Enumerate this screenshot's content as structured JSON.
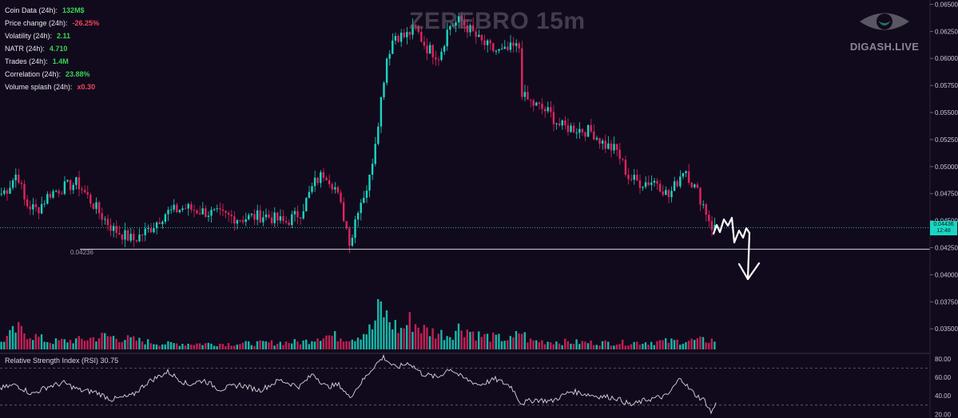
{
  "title": "ZEREBRO 15m",
  "brand": "DIGASH.LIVE",
  "info": [
    {
      "label": "Coin Data (24h):",
      "value": "132M$",
      "color": "#39d353"
    },
    {
      "label": "Price change (24h):",
      "value": "-26.25%",
      "color": "#f0475e"
    },
    {
      "label": "Volatility (24h):",
      "value": "2.11",
      "color": "#39d353"
    },
    {
      "label": "NATR (24h):",
      "value": "4.710",
      "color": "#39d353"
    },
    {
      "label": "Trades (24h):",
      "value": "1.4M",
      "color": "#39d353"
    },
    {
      "label": "Correlation (24h):",
      "value": "23.88%",
      "color": "#39d353"
    },
    {
      "label": "Volume splash (24h):",
      "value": "x0.30",
      "color": "#f0475e"
    }
  ],
  "price_tag": {
    "price": "0.04436",
    "countdown": "12:48"
  },
  "low_label": "0.04236",
  "rsi_label": "Relative Strength Index (RSI) 30.75",
  "colors": {
    "up": "#1ad6c2",
    "down": "#e0245e",
    "background": "#110a1c",
    "rsi_line": "#d9d7df"
  },
  "chart_data": {
    "type": "candlestick",
    "title": "ZEREBRO 15m",
    "price_axis_ticks": [
      0.065,
      0.0625,
      0.06,
      0.0575,
      0.055,
      0.0525,
      0.05,
      0.0475,
      0.045,
      0.0425,
      0.04,
      0.0375,
      0.035
    ],
    "price_axis_labels": [
      "0.06500",
      "0.06250",
      "0.06000",
      "0.05750",
      "0.05500",
      "0.05250",
      "0.05000",
      "0.04750",
      "0.04500",
      "0.04250",
      "0.04000",
      "0.03750",
      "0.03500"
    ],
    "price_ylim": [
      0.0331,
      0.0654
    ],
    "support_level": 0.04236,
    "current_price": 0.04436,
    "close_path": [
      [
        0,
        0.0475
      ],
      [
        8,
        0.048
      ],
      [
        20,
        0.0495
      ],
      [
        30,
        0.0465
      ],
      [
        45,
        0.046
      ],
      [
        60,
        0.0475
      ],
      [
        75,
        0.048
      ],
      [
        95,
        0.0485
      ],
      [
        110,
        0.047
      ],
      [
        125,
        0.0455
      ],
      [
        140,
        0.0442
      ],
      [
        165,
        0.0432
      ],
      [
        185,
        0.0442
      ],
      [
        205,
        0.0457
      ],
      [
        230,
        0.0462
      ],
      [
        255,
        0.0458
      ],
      [
        275,
        0.0455
      ],
      [
        300,
        0.0452
      ],
      [
        330,
        0.0455
      ],
      [
        355,
        0.0448
      ],
      [
        375,
        0.0458
      ],
      [
        392,
        0.0485
      ],
      [
        405,
        0.0495
      ],
      [
        418,
        0.048
      ],
      [
        428,
        0.0455
      ],
      [
        437,
        0.0428
      ],
      [
        445,
        0.046
      ],
      [
        460,
        0.0485
      ],
      [
        472,
        0.0545
      ],
      [
        482,
        0.06
      ],
      [
        492,
        0.0622
      ],
      [
        505,
        0.062
      ],
      [
        518,
        0.0628
      ],
      [
        532,
        0.061
      ],
      [
        548,
        0.0602
      ],
      [
        560,
        0.063
      ],
      [
        575,
        0.0635
      ],
      [
        588,
        0.0625
      ],
      [
        600,
        0.0615
      ],
      [
        615,
        0.0608
      ],
      [
        628,
        0.0605
      ],
      [
        640,
        0.061
      ],
      [
        648,
        0.061
      ],
      [
        652,
        0.0565
      ],
      [
        665,
        0.0558
      ],
      [
        685,
        0.055
      ],
      [
        700,
        0.0537
      ],
      [
        720,
        0.0535
      ],
      [
        740,
        0.0532
      ],
      [
        755,
        0.052
      ],
      [
        770,
        0.0515
      ],
      [
        785,
        0.049
      ],
      [
        800,
        0.0485
      ],
      [
        820,
        0.0487
      ],
      [
        835,
        0.0472
      ],
      [
        845,
        0.0485
      ],
      [
        855,
        0.05
      ],
      [
        862,
        0.0488
      ],
      [
        872,
        0.0475
      ],
      [
        880,
        0.0462
      ],
      [
        890,
        0.0443
      ],
      [
        896,
        0.04436
      ]
    ],
    "volume_profile": [
      [
        0,
        0.8
      ],
      [
        20,
        2.1
      ],
      [
        60,
        0.8
      ],
      [
        100,
        1.0
      ],
      [
        130,
        1.4
      ],
      [
        200,
        0.6
      ],
      [
        300,
        0.6
      ],
      [
        380,
        0.8
      ],
      [
        400,
        1.5
      ],
      [
        440,
        1.2
      ],
      [
        465,
        2.2
      ],
      [
        474,
        4.5
      ],
      [
        485,
        3.0
      ],
      [
        500,
        2.0
      ],
      [
        512,
        3.0
      ],
      [
        530,
        2.0
      ],
      [
        560,
        1.5
      ],
      [
        575,
        2.4
      ],
      [
        600,
        1.4
      ],
      [
        640,
        1.0
      ],
      [
        650,
        2.0
      ],
      [
        660,
        0.9
      ],
      [
        700,
        0.8
      ],
      [
        740,
        0.7
      ],
      [
        780,
        0.7
      ],
      [
        820,
        0.8
      ],
      [
        860,
        0.9
      ],
      [
        896,
        1.0
      ]
    ],
    "rsi": {
      "name": "Relative Strength Index (RSI)",
      "last": 30.75,
      "axis_ticks": [
        80,
        60,
        40,
        20
      ],
      "axis_labels": [
        "80.00",
        "60.00",
        "40.00",
        "20.00"
      ],
      "levels": [
        70,
        30
      ],
      "ylim": [
        16,
        86
      ],
      "path": [
        [
          0,
          48
        ],
        [
          20,
          52
        ],
        [
          40,
          42
        ],
        [
          60,
          50
        ],
        [
          80,
          54
        ],
        [
          100,
          46
        ],
        [
          120,
          44
        ],
        [
          140,
          36
        ],
        [
          165,
          40
        ],
        [
          185,
          55
        ],
        [
          210,
          66
        ],
        [
          235,
          52
        ],
        [
          255,
          57
        ],
        [
          275,
          47
        ],
        [
          300,
          52
        ],
        [
          325,
          46
        ],
        [
          350,
          57
        ],
        [
          375,
          50
        ],
        [
          392,
          64
        ],
        [
          408,
          50
        ],
        [
          425,
          52
        ],
        [
          437,
          38
        ],
        [
          450,
          52
        ],
        [
          468,
          72
        ],
        [
          480,
          82
        ],
        [
          495,
          70
        ],
        [
          512,
          76
        ],
        [
          528,
          64
        ],
        [
          548,
          60
        ],
        [
          563,
          70
        ],
        [
          578,
          60
        ],
        [
          600,
          52
        ],
        [
          620,
          58
        ],
        [
          640,
          50
        ],
        [
          652,
          32
        ],
        [
          670,
          36
        ],
        [
          690,
          34
        ],
        [
          715,
          45
        ],
        [
          745,
          40
        ],
        [
          770,
          38
        ],
        [
          790,
          30
        ],
        [
          810,
          36
        ],
        [
          835,
          40
        ],
        [
          852,
          60
        ],
        [
          862,
          48
        ],
        [
          872,
          40
        ],
        [
          882,
          35
        ],
        [
          890,
          22
        ],
        [
          896,
          31
        ]
      ]
    }
  }
}
